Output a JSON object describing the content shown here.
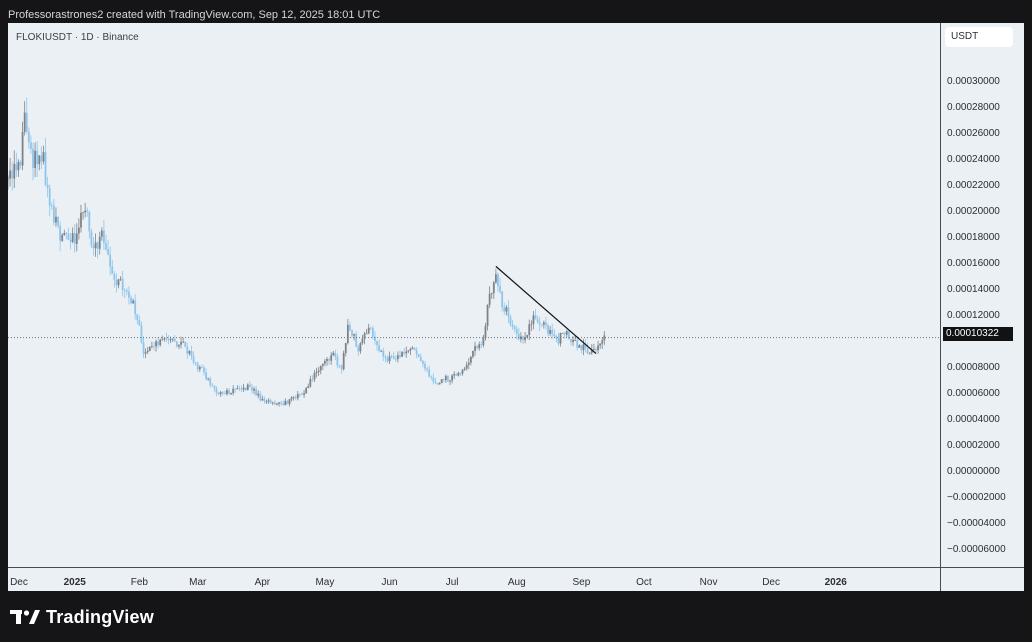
{
  "header": "Professorastrones2 created with TradingView.com, Sep 12, 2025 18:01 UTC",
  "brand": "TradingView",
  "chart_data": {
    "type": "candlestick",
    "title": "FLOKIUSDT · 1D · Binance",
    "y_unit": "USDT",
    "y_ticks": [
      "0.00030000",
      "0.00028000",
      "0.00026000",
      "0.00024000",
      "0.00022000",
      "0.00020000",
      "0.00018000",
      "0.00016000",
      "0.00014000",
      "0.00012000",
      "0.00008000",
      "0.00006000",
      "0.00004000",
      "0.00002000",
      "0.00000000",
      "−0.00002000",
      "−0.00004000",
      "−0.00006000"
    ],
    "y_range": [
      -7.3e-05,
      0.000345
    ],
    "x_ticks": [
      {
        "date": "2024-12-01",
        "label": "Dec",
        "bold": false
      },
      {
        "date": "2025-01-01",
        "label": "2025",
        "bold": true
      },
      {
        "date": "2025-02-01",
        "label": "Feb",
        "bold": false
      },
      {
        "date": "2025-03-01",
        "label": "Mar",
        "bold": false
      },
      {
        "date": "2025-04-01",
        "label": "Apr",
        "bold": false
      },
      {
        "date": "2025-05-01",
        "label": "May",
        "bold": false
      },
      {
        "date": "2025-06-01",
        "label": "Jun",
        "bold": false
      },
      {
        "date": "2025-07-01",
        "label": "Jul",
        "bold": false
      },
      {
        "date": "2025-08-01",
        "label": "Aug",
        "bold": false
      },
      {
        "date": "2025-09-01",
        "label": "Sep",
        "bold": false
      },
      {
        "date": "2025-10-01",
        "label": "Oct",
        "bold": false
      },
      {
        "date": "2025-11-01",
        "label": "Nov",
        "bold": false
      },
      {
        "date": "2025-12-01",
        "label": "Dec",
        "bold": false
      },
      {
        "date": "2026-01-01",
        "label": "2026",
        "bold": true
      }
    ],
    "x_range": [
      "2024-11-30",
      "2026-02-20"
    ],
    "current_price": "0.00010322",
    "current_price_value": 0.00010322,
    "price_path": [
      {
        "date": "2024-11-30",
        "close": 0.000225
      },
      {
        "date": "2024-12-05",
        "close": 0.000232
      },
      {
        "date": "2024-12-08",
        "close": 0.000268
      },
      {
        "date": "2024-12-12",
        "close": 0.00024
      },
      {
        "date": "2024-12-16",
        "close": 0.000247
      },
      {
        "date": "2024-12-20",
        "close": 0.00021
      },
      {
        "date": "2024-12-25",
        "close": 0.000177
      },
      {
        "date": "2025-01-01",
        "close": 0.00018
      },
      {
        "date": "2025-01-06",
        "close": 0.000203
      },
      {
        "date": "2025-01-10",
        "close": 0.000172
      },
      {
        "date": "2025-01-14",
        "close": 0.00018
      },
      {
        "date": "2025-01-20",
        "close": 0.00015
      },
      {
        "date": "2025-01-26",
        "close": 0.00014
      },
      {
        "date": "2025-02-01",
        "close": 0.000115
      },
      {
        "date": "2025-02-03",
        "close": 9e-05
      },
      {
        "date": "2025-02-08",
        "close": 9.8e-05
      },
      {
        "date": "2025-02-15",
        "close": 0.000101
      },
      {
        "date": "2025-02-22",
        "close": 9.7e-05
      },
      {
        "date": "2025-02-28",
        "close": 8.3e-05
      },
      {
        "date": "2025-03-05",
        "close": 7.4e-05
      },
      {
        "date": "2025-03-10",
        "close": 6e-05
      },
      {
        "date": "2025-03-18",
        "close": 6.2e-05
      },
      {
        "date": "2025-03-26",
        "close": 6.6e-05
      },
      {
        "date": "2025-03-31",
        "close": 5.7e-05
      },
      {
        "date": "2025-04-07",
        "close": 5.1e-05
      },
      {
        "date": "2025-04-12",
        "close": 5.3e-05
      },
      {
        "date": "2025-04-20",
        "close": 6e-05
      },
      {
        "date": "2025-04-28",
        "close": 8e-05
      },
      {
        "date": "2025-05-05",
        "close": 9e-05
      },
      {
        "date": "2025-05-09",
        "close": 7.8e-05
      },
      {
        "date": "2025-05-12",
        "close": 0.000113
      },
      {
        "date": "2025-05-17",
        "close": 9.6e-05
      },
      {
        "date": "2025-05-22",
        "close": 0.00011
      },
      {
        "date": "2025-05-27",
        "close": 9.5e-05
      },
      {
        "date": "2025-06-01",
        "close": 8.6e-05
      },
      {
        "date": "2025-06-08",
        "close": 9e-05
      },
      {
        "date": "2025-06-12",
        "close": 9.5e-05
      },
      {
        "date": "2025-06-17",
        "close": 8.2e-05
      },
      {
        "date": "2025-06-22",
        "close": 6.8e-05
      },
      {
        "date": "2025-07-01",
        "close": 7.3e-05
      },
      {
        "date": "2025-07-07",
        "close": 7.8e-05
      },
      {
        "date": "2025-07-12",
        "close": 9.5e-05
      },
      {
        "date": "2025-07-16",
        "close": 0.000103
      },
      {
        "date": "2025-07-19",
        "close": 0.000135
      },
      {
        "date": "2025-07-22",
        "close": 0.00015
      },
      {
        "date": "2025-07-25",
        "close": 0.000128
      },
      {
        "date": "2025-07-28",
        "close": 0.00012
      },
      {
        "date": "2025-08-01",
        "close": 0.000103
      },
      {
        "date": "2025-08-05",
        "close": 0.000104
      },
      {
        "date": "2025-08-09",
        "close": 0.000118
      },
      {
        "date": "2025-08-13",
        "close": 0.000115
      },
      {
        "date": "2025-08-17",
        "close": 0.000107
      },
      {
        "date": "2025-08-21",
        "close": 0.000101
      },
      {
        "date": "2025-08-24",
        "close": 0.000108
      },
      {
        "date": "2025-08-28",
        "close": 9.9e-05
      },
      {
        "date": "2025-09-01",
        "close": 9.6e-05
      },
      {
        "date": "2025-09-05",
        "close": 9.3e-05
      },
      {
        "date": "2025-09-08",
        "close": 9.5e-05
      },
      {
        "date": "2025-09-12",
        "close": 0.000103
      }
    ],
    "trendline": {
      "start": {
        "date": "2025-07-22",
        "price": 0.000158
      },
      "end": {
        "date": "2025-09-08",
        "price": 9.1e-05
      }
    },
    "colors": {
      "up": "#7f8288",
      "down": "#8ec5ee",
      "background": "#eaf0f3",
      "trendline": "#111214",
      "price_line": "#6c717b"
    }
  }
}
